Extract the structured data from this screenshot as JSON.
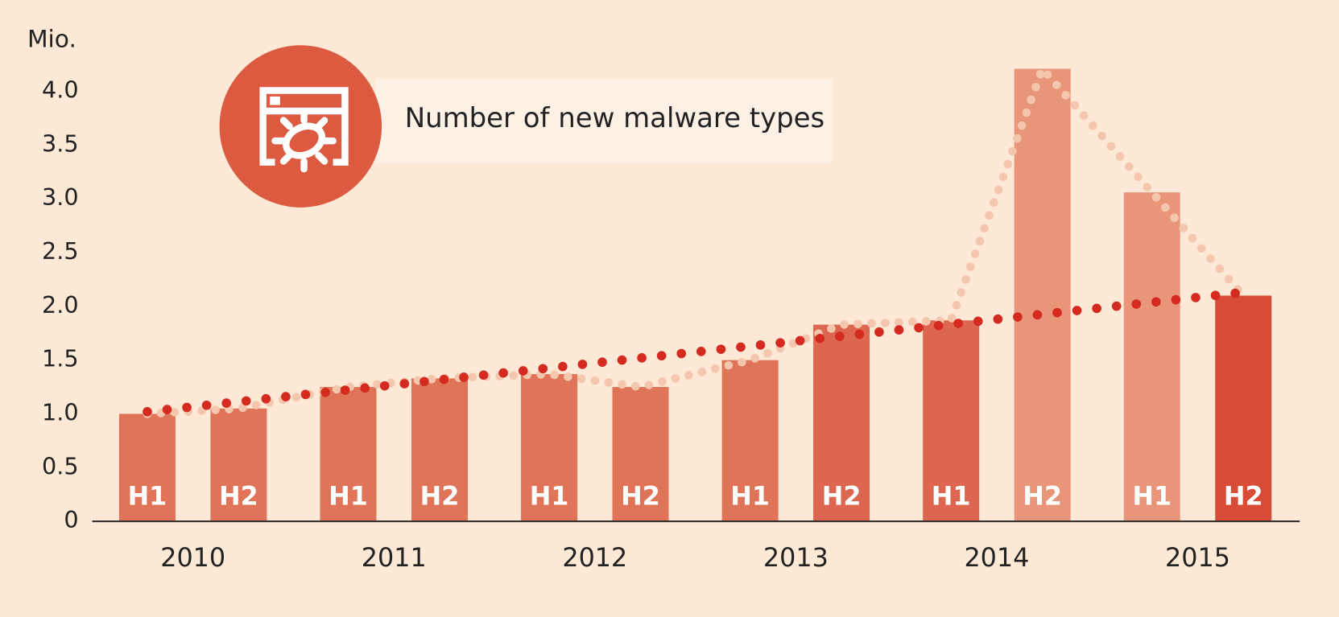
{
  "chart_data": {
    "type": "bar",
    "title": "Number of new malware types",
    "y_unit": "Mio.",
    "groups": [
      "2010",
      "2011",
      "2012",
      "2013",
      "2014",
      "2015"
    ],
    "categories": [
      "H1",
      "H2",
      "H1",
      "H2",
      "H1",
      "H2",
      "H1",
      "H2",
      "H1",
      "H2",
      "H1",
      "H2"
    ],
    "values": [
      1.0,
      1.05,
      1.25,
      1.33,
      1.37,
      1.25,
      1.5,
      1.83,
      1.87,
      4.21,
      3.06,
      2.1
    ],
    "colors": [
      "#e07458",
      "#e07458",
      "#e07458",
      "#e07458",
      "#e07458",
      "#e07458",
      "#e07458",
      "#dd6650",
      "#dd6650",
      "#e8957a",
      "#e8957a",
      "#d84c37"
    ],
    "line_color": "#f5c6ae",
    "trend_values": [
      1.02,
      2.13
    ],
    "trend_color": "#d42a20",
    "ylim": [
      0,
      4.21
    ],
    "yticks": [
      0,
      0.5,
      {
        "value": 1,
        "label": "1.0"
      },
      1.5,
      {
        "value": 2,
        "label": "2.0"
      },
      2.5,
      {
        "value": 3,
        "label": "3.0"
      },
      3.5,
      {
        "value": 4,
        "label": "4.0"
      }
    ]
  }
}
